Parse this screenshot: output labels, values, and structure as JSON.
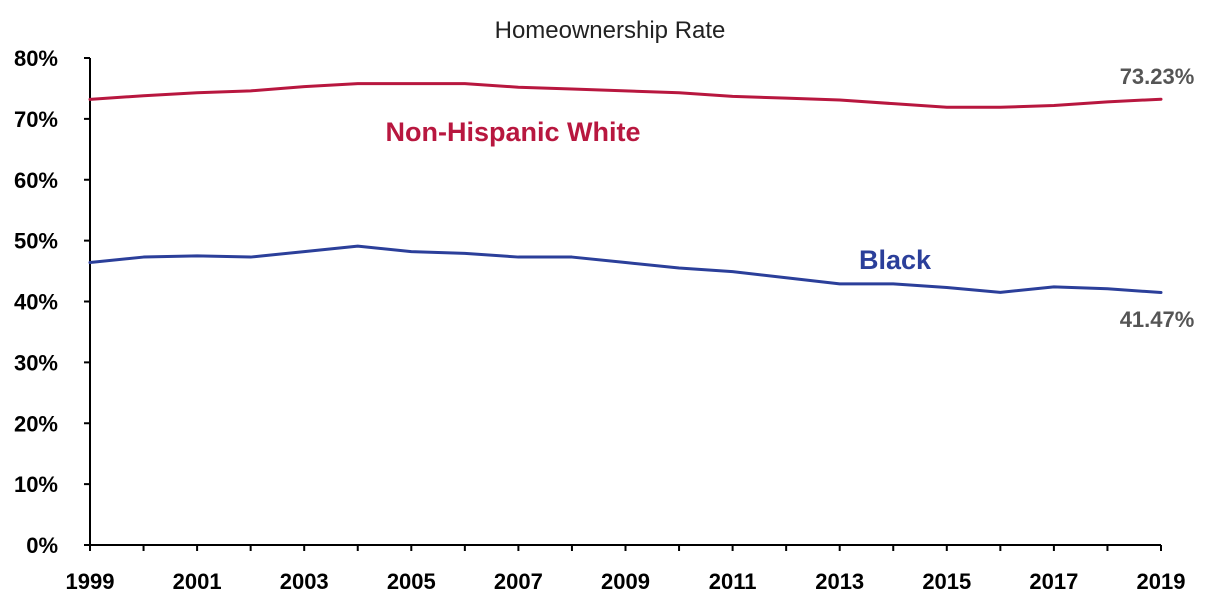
{
  "chart_data": {
    "type": "line",
    "title": "Homeownership Rate",
    "xlabel": "",
    "ylabel": "",
    "x": [
      1999,
      2000,
      2001,
      2002,
      2003,
      2004,
      2005,
      2006,
      2007,
      2008,
      2009,
      2010,
      2011,
      2012,
      2013,
      2014,
      2015,
      2016,
      2017,
      2018,
      2019
    ],
    "x_tick_labels": [
      "1999",
      "2001",
      "2003",
      "2005",
      "2007",
      "2009",
      "2011",
      "2013",
      "2015",
      "2017",
      "2019"
    ],
    "ylim": [
      0,
      80
    ],
    "y_tick_labels": [
      "0%",
      "10%",
      "20%",
      "30%",
      "40%",
      "50%",
      "60%",
      "70%",
      "80%"
    ],
    "grid": false,
    "series": [
      {
        "name": "Non-Hispanic White",
        "color": "#b8173f",
        "values": [
          73.2,
          73.8,
          74.3,
          74.6,
          75.3,
          75.8,
          75.8,
          75.8,
          75.2,
          74.9,
          74.6,
          74.3,
          73.7,
          73.4,
          73.1,
          72.5,
          71.9,
          71.9,
          72.2,
          72.8,
          73.23
        ]
      },
      {
        "name": "Black",
        "color": "#2b3f9a",
        "values": [
          46.4,
          47.3,
          47.5,
          47.3,
          48.2,
          49.1,
          48.2,
          47.9,
          47.3,
          47.3,
          46.4,
          45.5,
          44.9,
          43.9,
          42.9,
          42.9,
          42.3,
          41.5,
          42.4,
          42.1,
          41.47
        ]
      }
    ],
    "annotations": {
      "white_end_value": "73.23%",
      "black_end_value": "41.47%"
    }
  }
}
